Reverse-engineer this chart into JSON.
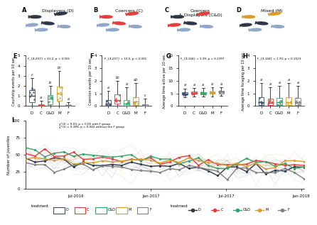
{
  "panel_titles": {
    "A": "Displayers (D)",
    "B": "Coercers (C)",
    "C": "Coercers\n& Displayers (C&D)",
    "D": "Mixed (M)"
  },
  "box_colors": {
    "D": "#4a5568",
    "C": "#e53e3e",
    "C&D": "#38a169",
    "M": "#d69e2e",
    "F": "#718096"
  },
  "box_colors_hex": [
    "#4a5568",
    "#e53e3e",
    "#38a169",
    "#d69e2e",
    "#718096"
  ],
  "categories": [
    "D",
    "C",
    "C&D",
    "M",
    "F"
  ],
  "panel_E": {
    "title": "F_{4,257} = 61.2, p < 0.001",
    "ylabel": "Courtship events per 10 sec.",
    "letters": [
      "c",
      "a",
      "b",
      "bc",
      "a"
    ],
    "medians": [
      1.0,
      0.05,
      0.7,
      1.2,
      0.05
    ],
    "q1": [
      0.4,
      0.0,
      0.2,
      0.5,
      0.0
    ],
    "q3": [
      1.6,
      0.15,
      1.1,
      1.9,
      0.12
    ],
    "whisker_low": [
      0.0,
      0.0,
      0.0,
      0.0,
      0.0
    ],
    "whisker_high": [
      2.8,
      0.5,
      2.0,
      3.5,
      0.4
    ],
    "ylim": [
      0,
      5
    ]
  },
  "panel_F": {
    "title": "F_{4,257} = 10.5, p < 0.001",
    "ylabel": "Coercion events per 10 sec.",
    "letters": [
      "a",
      "bc",
      "a",
      "ab",
      "c"
    ],
    "medians": [
      0.2,
      0.5,
      0.2,
      0.35,
      0.05
    ],
    "q1": [
      0.05,
      0.2,
      0.05,
      0.1,
      0.0
    ],
    "q3": [
      0.5,
      0.9,
      0.5,
      0.7,
      0.15
    ],
    "whisker_low": [
      0.0,
      0.0,
      0.0,
      0.0,
      0.0
    ],
    "whisker_high": [
      1.2,
      2.0,
      1.5,
      1.8,
      0.6
    ],
    "ylim": [
      0,
      4
    ]
  },
  "panel_G": {
    "title": "F_{4,144} = 1.39, p = 0.2397",
    "ylabel": "Average time active per 10 sec.",
    "letters": [
      "a",
      "a",
      "a",
      "a",
      "a"
    ],
    "medians": [
      5.0,
      5.2,
      5.1,
      5.3,
      5.5
    ],
    "q1": [
      4.5,
      4.8,
      4.7,
      4.9,
      5.0
    ],
    "q3": [
      5.5,
      5.7,
      5.6,
      5.8,
      6.0
    ],
    "whisker_low": [
      3.5,
      3.8,
      3.7,
      3.9,
      4.0
    ],
    "whisker_high": [
      7.0,
      7.2,
      7.1,
      7.3,
      7.5
    ],
    "ylim": [
      0,
      20
    ]
  },
  "panel_H": {
    "title": "F_{4,144} = 1.70, p = 0.1523",
    "ylabel": "Average time foraging per 10 sec.",
    "letters": [
      "a",
      "a",
      "a",
      "a",
      "a"
    ],
    "medians": [
      0.3,
      0.25,
      0.28,
      0.32,
      0.3
    ],
    "q1": [
      0.1,
      0.08,
      0.1,
      0.1,
      0.1
    ],
    "q3": [
      0.7,
      0.6,
      0.65,
      0.7,
      0.65
    ],
    "whisker_low": [
      0.0,
      0.0,
      0.0,
      0.0,
      0.0
    ],
    "whisker_high": [
      1.8,
      1.5,
      1.6,
      1.8,
      1.6
    ],
    "ylim": [
      0,
      4
    ]
  },
  "line_colors": {
    "D": "#2d3748",
    "C": "#e53e3e",
    "C&D": "#38a169",
    "M": "#d69e2e",
    "F": "#718096"
  },
  "time_labels": [
    "Jul-2016",
    "Jan-2017",
    "Jul-2017",
    "Jan-2018"
  ],
  "panel_I_annotation": "χ²(4) = 9.03, p = 0.06 with F group\nχ²(3) = 9.389, p = 0.042 without the F group",
  "background_color": "#ffffff",
  "fish_colors": {
    "A": {
      "male": "#2d3748",
      "female": "#8fa8c8"
    },
    "B": {
      "male": "#e53e3e",
      "female": "#8fa8c8"
    },
    "C": {
      "male_d": "#2d3748",
      "male_c": "#e53e3e",
      "female": "#8fa8c8"
    },
    "D": {
      "male": "#d69e2e",
      "female": "#2d3748"
    }
  }
}
